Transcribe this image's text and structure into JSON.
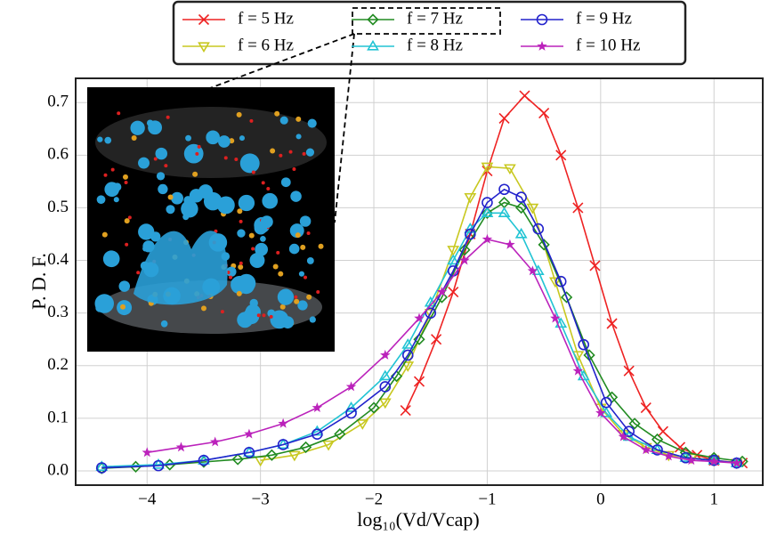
{
  "chart_data": {
    "type": "line",
    "xlabel": "log₁₀(Vd/Vcap)",
    "ylabel": "P. D. F.",
    "xlim": [
      -4.63,
      1.43
    ],
    "ylim": [
      -0.027,
      0.746
    ],
    "xticks": [
      {
        "value": -4,
        "label": "−4"
      },
      {
        "value": -3,
        "label": "−3"
      },
      {
        "value": -2,
        "label": "−2"
      },
      {
        "value": -1,
        "label": "−1"
      },
      0,
      1
    ],
    "yticks": [
      {
        "value": 0,
        "label": "0.0"
      },
      0.1,
      0.2,
      0.3,
      0.4,
      0.5,
      0.6,
      0.7
    ],
    "grid": true,
    "legend": "top",
    "series": [
      {
        "name": "f = 5 Hz",
        "color": "#ee2222",
        "marker": "x",
        "x": [
          -1.72,
          -1.6,
          -1.45,
          -1.3,
          -1.15,
          -1.0,
          -0.85,
          -0.67,
          -0.5,
          -0.35,
          -0.2,
          -0.05,
          0.1,
          0.25,
          0.4,
          0.55,
          0.7,
          0.85,
          1.0,
          1.25
        ],
        "values": [
          0.115,
          0.17,
          0.25,
          0.34,
          0.45,
          0.57,
          0.67,
          0.713,
          0.68,
          0.6,
          0.5,
          0.39,
          0.28,
          0.19,
          0.12,
          0.075,
          0.045,
          0.03,
          0.02,
          0.015
        ]
      },
      {
        "name": "f = 6 Hz",
        "color": "#c8c820",
        "marker": "v",
        "x": [
          -3.0,
          -2.7,
          -2.4,
          -2.1,
          -1.9,
          -1.7,
          -1.5,
          -1.3,
          -1.15,
          -1.0,
          -0.8,
          -0.6,
          -0.4,
          -0.2,
          0,
          0.2,
          0.4,
          0.6,
          0.8,
          1.0,
          1.2
        ],
        "values": [
          0.02,
          0.03,
          0.05,
          0.09,
          0.13,
          0.2,
          0.3,
          0.42,
          0.52,
          0.578,
          0.575,
          0.5,
          0.36,
          0.22,
          0.12,
          0.07,
          0.045,
          0.03,
          0.025,
          0.02,
          0.015
        ]
      },
      {
        "name": "f = 7 Hz",
        "color": "#228b22",
        "marker": "D",
        "x": [
          -4.4,
          -4.1,
          -3.8,
          -3.5,
          -3.2,
          -2.9,
          -2.6,
          -2.3,
          -2.0,
          -1.8,
          -1.6,
          -1.4,
          -1.2,
          -1.0,
          -0.85,
          -0.7,
          -0.5,
          -0.3,
          -0.1,
          0.1,
          0.3,
          0.5,
          0.75,
          1.0,
          1.25
        ],
        "values": [
          0.005,
          0.008,
          0.012,
          0.017,
          0.022,
          0.03,
          0.045,
          0.07,
          0.12,
          0.18,
          0.25,
          0.33,
          0.42,
          0.49,
          0.51,
          0.5,
          0.43,
          0.33,
          0.22,
          0.14,
          0.09,
          0.06,
          0.035,
          0.025,
          0.018
        ]
      },
      {
        "name": "f = 8 Hz",
        "color": "#22c4d4",
        "marker": "^",
        "x": [
          -4.4,
          -3.9,
          -3.5,
          -3.1,
          -2.8,
          -2.5,
          -2.2,
          -1.9,
          -1.7,
          -1.5,
          -1.3,
          -1.15,
          -1.0,
          -0.85,
          -0.7,
          -0.55,
          -0.35,
          -0.15,
          0.05,
          0.25,
          0.5,
          0.75,
          1.0,
          1.2
        ],
        "values": [
          0.008,
          0.012,
          0.02,
          0.035,
          0.05,
          0.075,
          0.12,
          0.18,
          0.24,
          0.32,
          0.4,
          0.46,
          0.49,
          0.49,
          0.45,
          0.38,
          0.28,
          0.18,
          0.11,
          0.065,
          0.04,
          0.025,
          0.02,
          0.015
        ]
      },
      {
        "name": "f = 9 Hz",
        "color": "#2222cc",
        "marker": "o",
        "x": [
          -4.4,
          -3.9,
          -3.5,
          -3.1,
          -2.8,
          -2.5,
          -2.2,
          -1.9,
          -1.7,
          -1.5,
          -1.3,
          -1.15,
          -1.0,
          -0.85,
          -0.7,
          -0.55,
          -0.35,
          -0.15,
          0.05,
          0.25,
          0.5,
          0.75,
          1.0,
          1.2
        ],
        "values": [
          0.006,
          0.01,
          0.02,
          0.035,
          0.05,
          0.07,
          0.11,
          0.16,
          0.22,
          0.3,
          0.38,
          0.45,
          0.51,
          0.535,
          0.52,
          0.46,
          0.36,
          0.24,
          0.13,
          0.075,
          0.04,
          0.025,
          0.02,
          0.015
        ]
      },
      {
        "name": "f = 10 Hz",
        "color": "#bb22bb",
        "marker": "*",
        "x": [
          -4.0,
          -3.7,
          -3.4,
          -3.1,
          -2.8,
          -2.5,
          -2.2,
          -1.9,
          -1.6,
          -1.4,
          -1.2,
          -1.0,
          -0.8,
          -0.6,
          -0.4,
          -0.2,
          0,
          0.2,
          0.4,
          0.6,
          0.8,
          1.0,
          1.2
        ],
        "values": [
          0.035,
          0.045,
          0.055,
          0.07,
          0.09,
          0.12,
          0.16,
          0.22,
          0.29,
          0.34,
          0.4,
          0.44,
          0.43,
          0.38,
          0.29,
          0.19,
          0.11,
          0.065,
          0.04,
          0.028,
          0.02,
          0.018,
          0.015
        ]
      }
    ]
  }
}
